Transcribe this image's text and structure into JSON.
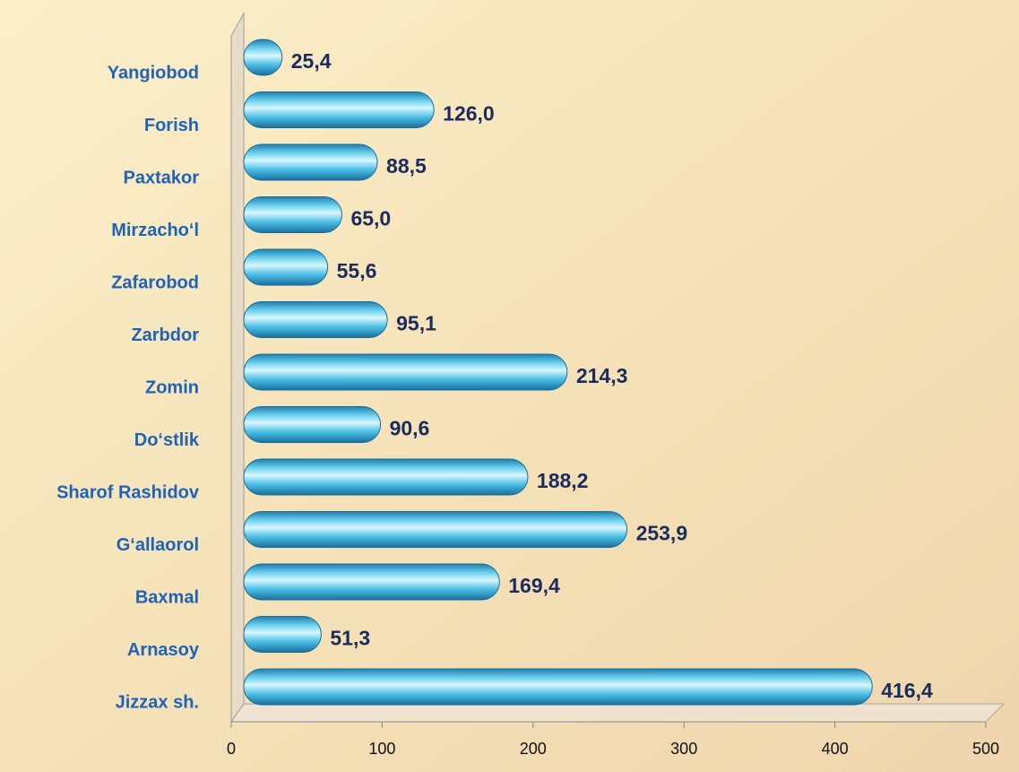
{
  "chart_data": {
    "type": "bar",
    "orientation": "horizontal",
    "categories": [
      "Yangiobod",
      "Forish",
      "Paxtakor",
      "Mirzacho‘l",
      "Zafarobod",
      "Zarbdor",
      "Zomin",
      "Do‘stlik",
      "Sharof Rashidov",
      "G‘allaorol",
      "Baxmal",
      "Arnasoy",
      "Jizzax sh."
    ],
    "values": [
      25.4,
      126.0,
      88.5,
      65.0,
      55.6,
      95.1,
      214.3,
      90.6,
      188.2,
      253.9,
      169.4,
      51.3,
      416.4
    ],
    "value_labels": [
      "25,4",
      "126,0",
      "88,5",
      "65,0",
      "55,6",
      "95,1",
      "214,3",
      "90,6",
      "188,2",
      "253,9",
      "169,4",
      "51,3",
      "416,4"
    ],
    "color": "#3fb4dc",
    "xlim": [
      0,
      500
    ],
    "xticks": [
      0,
      100,
      200,
      300,
      400,
      500
    ]
  }
}
